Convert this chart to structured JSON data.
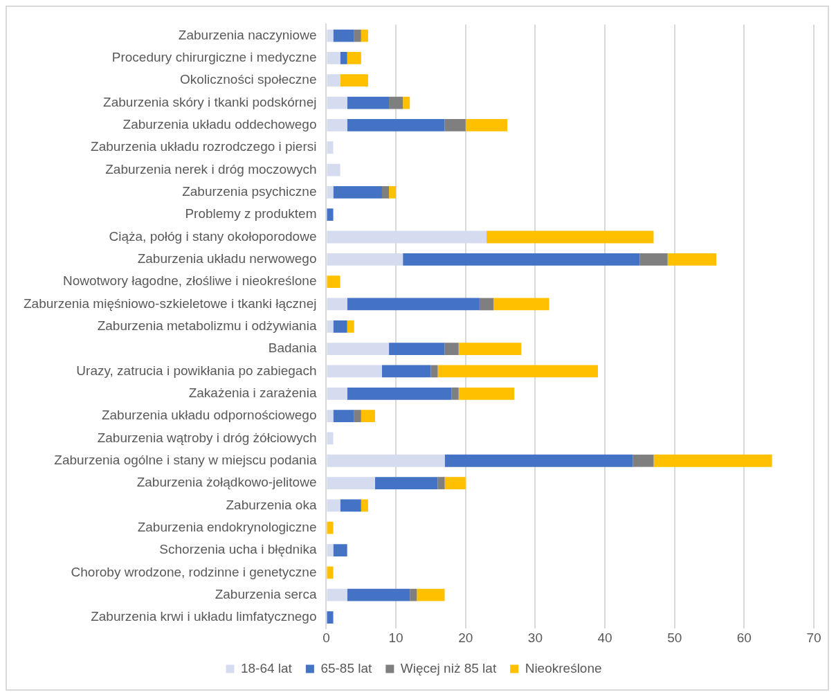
{
  "chart_data": {
    "type": "bar",
    "orientation": "horizontal",
    "stacked": true,
    "categories": [
      "Zaburzenia naczyniowe",
      "Procedury chirurgiczne i medyczne",
      "Okoliczności społeczne",
      "Zaburzenia skóry i tkanki podskórnej",
      "Zaburzenia układu oddechowego",
      "Zaburzenia układu rozrodczego i piersi",
      "Zaburzenia nerek i dróg moczowych",
      "Zaburzenia psychiczne",
      "Problemy z produktem",
      "Ciąża, połóg i stany okołoporodowe",
      "Zaburzenia układu nerwowego",
      "Nowotwory łagodne, złośliwe i nieokreślone",
      "Zaburzenia mięśniowo-szkieletowe i tkanki łącznej",
      "Zaburzenia metabolizmu i odżywiania",
      "Badania",
      "Urazy, zatrucia i powikłania po zabiegach",
      "Zakażenia i zarażenia",
      "Zaburzenia układu odpornościowego",
      "Zaburzenia wątroby i dróg żółciowych",
      "Zaburzenia ogólne i stany w miejscu podania",
      "Zaburzenia żołądkowo-jelitowe",
      "Zaburzenia oka",
      "Zaburzenia endokrynologiczne",
      "Schorzenia ucha i błędnika",
      "Choroby wrodzone, rodzinne i genetyczne",
      "Zaburzenia serca",
      "Zaburzenia krwi i układu limfatycznego"
    ],
    "series": [
      {
        "name": "18-64 lat",
        "color": "#d6dcf0",
        "values": [
          1,
          2,
          2,
          3,
          3,
          1,
          2,
          1,
          0,
          23,
          11,
          0,
          3,
          1,
          9,
          8,
          3,
          1,
          1,
          17,
          7,
          2,
          0,
          1,
          0,
          3,
          0
        ]
      },
      {
        "name": "65-85 lat",
        "color": "#4472c4",
        "values": [
          3,
          1,
          0,
          6,
          14,
          0,
          0,
          7,
          1,
          0,
          34,
          0,
          19,
          2,
          8,
          7,
          15,
          3,
          0,
          27,
          9,
          3,
          0,
          2,
          0,
          9,
          1
        ]
      },
      {
        "name": "Więcej niż 85 lat",
        "color": "#7f7f7f",
        "values": [
          1,
          0,
          0,
          2,
          3,
          0,
          0,
          1,
          0,
          0,
          4,
          0,
          2,
          0,
          2,
          1,
          1,
          1,
          0,
          3,
          1,
          0,
          0,
          0,
          0,
          1,
          0
        ]
      },
      {
        "name": "Nieokreślone",
        "color": "#ffc000",
        "values": [
          1,
          2,
          4,
          1,
          6,
          0,
          0,
          1,
          0,
          24,
          7,
          2,
          8,
          1,
          9,
          23,
          8,
          2,
          0,
          17,
          3,
          1,
          1,
          0,
          1,
          4,
          0
        ]
      }
    ],
    "xlim": [
      0,
      70
    ],
    "xticks": [
      0,
      10,
      20,
      30,
      40,
      50,
      60,
      70
    ],
    "grid": "x",
    "legend": "bottom"
  }
}
